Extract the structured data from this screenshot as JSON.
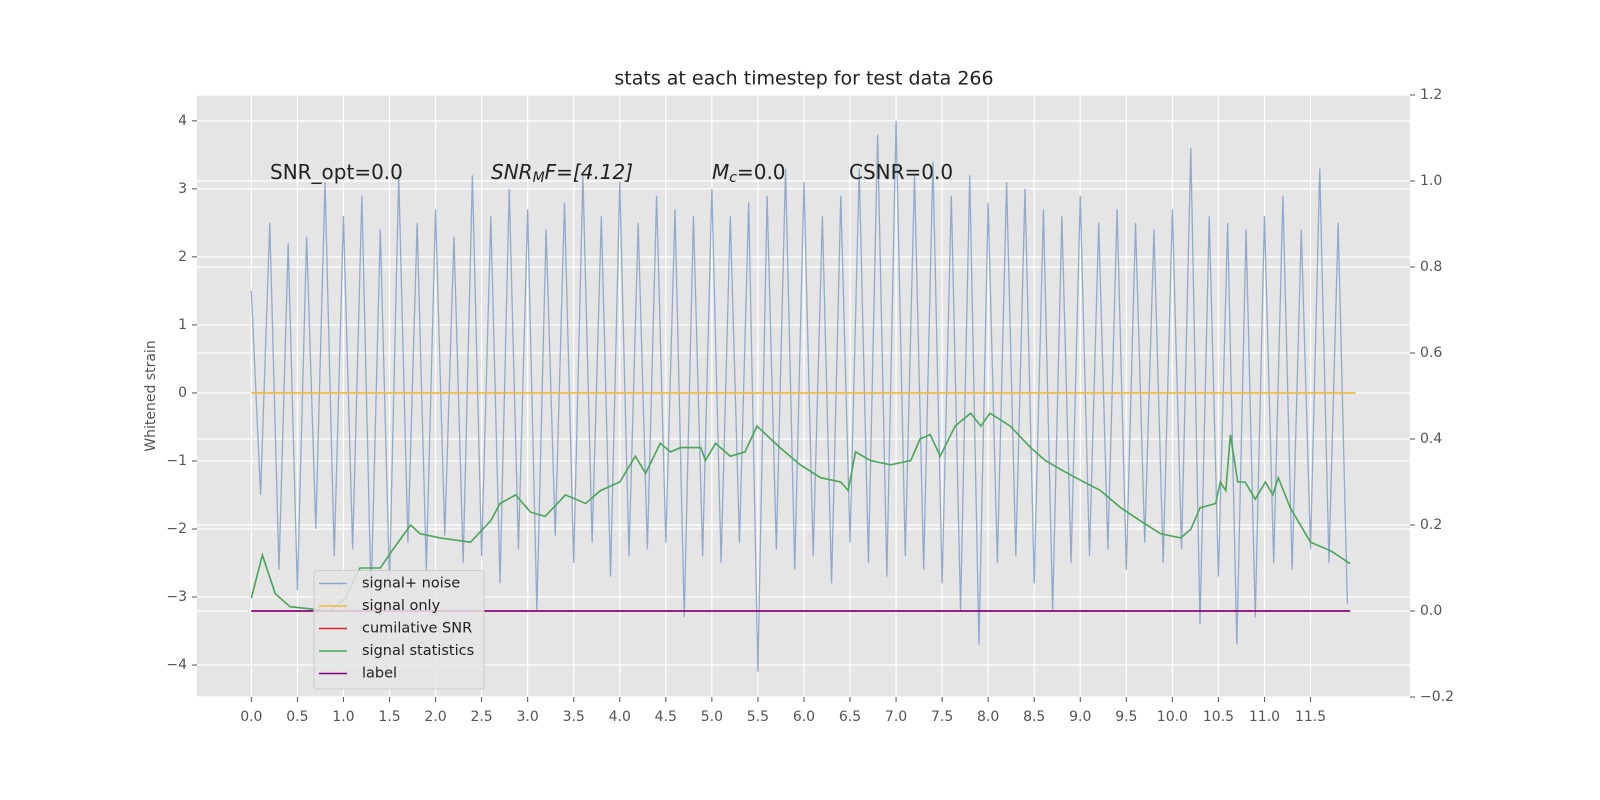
{
  "chart_data": {
    "type": "line",
    "title": "stats at each timestep for test data 266",
    "y_label": "Whitened strain",
    "annotations": [
      {
        "base": "SNR_opt=0.0"
      },
      {
        "base": "SNR",
        "sub": "M",
        "rest": "F=[4.12]"
      },
      {
        "base": "M",
        "sub": "c",
        "rest": "=0.0"
      },
      {
        "base": "CSNR=0.0"
      }
    ],
    "xlim": [
      -0.59,
      12.58
    ],
    "ylim": [
      -4.47,
      4.38
    ],
    "y2lim": [
      -0.2,
      1.2
    ],
    "xticks": [
      {
        "value": 0,
        "label": "0.0"
      },
      {
        "value": 0.5,
        "label": "0.5"
      },
      {
        "value": 1,
        "label": "1.0"
      },
      {
        "value": 1.5,
        "label": "1.5"
      },
      {
        "value": 2,
        "label": "2.0"
      },
      {
        "value": 2.5,
        "label": "2.5"
      },
      {
        "value": 3,
        "label": "3.0"
      },
      {
        "value": 3.5,
        "label": "3.5"
      },
      {
        "value": 4,
        "label": "4.0"
      },
      {
        "value": 4.5,
        "label": "4.5"
      },
      {
        "value": 5,
        "label": "5.0"
      },
      {
        "value": 5.5,
        "label": "5.5"
      },
      {
        "value": 6,
        "label": "6.0"
      },
      {
        "value": 6.5,
        "label": "6.5"
      },
      {
        "value": 7,
        "label": "7.0"
      },
      {
        "value": 7.5,
        "label": "7.5"
      },
      {
        "value": 8,
        "label": "8.0"
      },
      {
        "value": 8.5,
        "label": "8.5"
      },
      {
        "value": 9,
        "label": "9.0"
      },
      {
        "value": 9.5,
        "label": "9.5"
      },
      {
        "value": 10,
        "label": "10.0"
      },
      {
        "value": 10.5,
        "label": "10.5"
      },
      {
        "value": 11,
        "label": "11.0"
      },
      {
        "value": 11.5,
        "label": "11.5"
      }
    ],
    "yticks": [
      {
        "value": -4,
        "label": "−4"
      },
      {
        "value": -3,
        "label": "−3"
      },
      {
        "value": -2,
        "label": "−2"
      },
      {
        "value": -1,
        "label": "−1"
      },
      0,
      1,
      2,
      3,
      4
    ],
    "y2ticks": [
      {
        "value": -0.2,
        "label": "−0.2"
      },
      {
        "value": 0,
        "label": "0.0"
      },
      {
        "value": 0.2,
        "label": "0.2"
      },
      {
        "value": 0.4,
        "label": "0.4"
      },
      {
        "value": 0.6,
        "label": "0.6"
      },
      {
        "value": 0.8,
        "label": "0.8"
      },
      {
        "value": 1,
        "label": "1.0"
      },
      {
        "value": 1.2,
        "label": "1.2"
      }
    ],
    "grid": true,
    "legend": "lower left",
    "series": [
      {
        "name": "signal+ noise",
        "color": "#8ea5ca",
        "x": [
          0,
          0.1,
          0.2,
          0.3,
          0.4,
          0.5,
          0.6,
          0.7,
          0.8,
          0.9,
          1,
          1.1,
          1.2,
          1.3,
          1.4,
          1.5,
          1.6,
          1.7,
          1.8,
          1.9,
          2,
          2.1,
          2.2,
          2.3,
          2.4,
          2.5,
          2.6,
          2.7,
          2.8,
          2.9,
          3,
          3.1,
          3.2,
          3.3,
          3.4,
          3.5,
          3.6,
          3.7,
          3.8,
          3.9,
          4,
          4.1,
          4.2,
          4.3,
          4.4,
          4.5,
          4.6,
          4.7,
          4.8,
          4.9,
          5,
          5.1,
          5.2,
          5.3,
          5.4,
          5.5,
          5.6,
          5.7,
          5.8,
          5.9,
          6,
          6.1,
          6.2,
          6.3,
          6.4,
          6.5,
          6.6,
          6.7,
          6.8,
          6.9,
          7,
          7.1,
          7.2,
          7.3,
          7.4,
          7.5,
          7.6,
          7.7,
          7.8,
          7.9,
          8,
          8.1,
          8.2,
          8.3,
          8.4,
          8.5,
          8.6,
          8.7,
          8.8,
          8.9,
          9,
          9.1,
          9.2,
          9.3,
          9.4,
          9.5,
          9.6,
          9.7,
          9.8,
          9.9,
          10,
          10.1,
          10.2,
          10.3,
          10.4,
          10.5,
          10.6,
          10.7,
          10.8,
          10.9,
          11,
          11.1,
          11.2,
          11.3,
          11.4,
          11.5,
          11.6,
          11.7,
          11.8,
          11.9
        ],
        "values": [
          1.5,
          -1.5,
          2.5,
          -2.6,
          2.2,
          -2.9,
          2.3,
          -2.0,
          3.1,
          -2.4,
          2.6,
          -2.3,
          2.9,
          -3.0,
          2.4,
          -2.8,
          3.2,
          -2.2,
          2.5,
          -2.6,
          2.7,
          -2.1,
          2.3,
          -2.5,
          3.2,
          -2.4,
          2.6,
          -2.8,
          3.0,
          -2.3,
          2.7,
          -3.2,
          2.4,
          -2.1,
          2.8,
          -2.5,
          3.2,
          -2.2,
          2.6,
          -2.7,
          3.1,
          -2.4,
          2.5,
          -2.3,
          2.9,
          -2.2,
          2.7,
          -3.3,
          2.6,
          -2.4,
          3.0,
          -2.5,
          2.6,
          -2.2,
          2.8,
          -4.1,
          2.9,
          -2.3,
          3.3,
          -2.6,
          3.1,
          -2.4,
          2.6,
          -2.8,
          2.9,
          -2.2,
          3.3,
          -2.5,
          3.8,
          -2.7,
          4.0,
          -2.4,
          3.2,
          -2.6,
          3.4,
          -2.8,
          2.9,
          -3.2,
          3.2,
          -3.7,
          2.8,
          -2.5,
          3.1,
          -2.4,
          3.0,
          -2.8,
          2.7,
          -3.2,
          2.6,
          -2.5,
          2.9,
          -2.4,
          2.5,
          -2.3,
          2.7,
          -2.6,
          2.5,
          -2.2,
          2.4,
          -2.5,
          2.7,
          -2.3,
          3.6,
          -3.4,
          2.6,
          -2.7,
          2.5,
          -3.7,
          2.4,
          -3.3,
          2.6,
          -2.5,
          2.9,
          -2.6,
          2.4,
          -2.3,
          3.3,
          -2.5,
          2.5,
          -3.1
        ]
      },
      {
        "name": "signal only",
        "color": "#f2b742",
        "x": [
          0,
          11.99
        ],
        "values": [
          0,
          0
        ]
      },
      {
        "name": "cumilative SNR",
        "color": "#d62728",
        "axis": "y2",
        "x": [
          0,
          11.93
        ],
        "values": [
          0,
          0
        ]
      },
      {
        "name": "signal statistics",
        "color": "#4aa55a",
        "axis": "y2",
        "x": [
          0,
          0.12,
          0.26,
          0.42,
          0.86,
          1.02,
          1.18,
          1.4,
          1.56,
          1.73,
          1.83,
          2.05,
          2.38,
          2.6,
          2.7,
          2.87,
          3.03,
          3.19,
          3.41,
          3.63,
          3.79,
          4,
          4.17,
          4.28,
          4.44,
          4.55,
          4.66,
          4.88,
          4.93,
          5.04,
          5.2,
          5.36,
          5.49,
          5.74,
          5.96,
          6.18,
          6.4,
          6.48,
          6.56,
          6.72,
          6.94,
          7.16,
          7.26,
          7.37,
          7.48,
          7.64,
          7.81,
          7.92,
          8.02,
          8.24,
          8.46,
          8.62,
          8.78,
          8.95,
          9.22,
          9.44,
          9.65,
          9.87,
          10.09,
          10.2,
          10.3,
          10.47,
          10.52,
          10.58,
          10.63,
          10.71,
          10.79,
          10.9,
          11.01,
          11.09,
          11.15,
          11.28,
          11.5,
          11.72,
          11.93
        ],
        "values": [
          0.03,
          0.13,
          0.04,
          0.01,
          0,
          0.03,
          0.1,
          0.1,
          0.15,
          0.2,
          0.18,
          0.17,
          0.16,
          0.21,
          0.25,
          0.27,
          0.23,
          0.22,
          0.27,
          0.25,
          0.28,
          0.3,
          0.36,
          0.32,
          0.39,
          0.37,
          0.38,
          0.38,
          0.35,
          0.39,
          0.36,
          0.37,
          0.43,
          0.38,
          0.34,
          0.31,
          0.3,
          0.28,
          0.37,
          0.35,
          0.34,
          0.35,
          0.4,
          0.41,
          0.36,
          0.43,
          0.46,
          0.43,
          0.46,
          0.43,
          0.38,
          0.35,
          0.33,
          0.31,
          0.28,
          0.24,
          0.21,
          0.18,
          0.17,
          0.19,
          0.24,
          0.25,
          0.3,
          0.28,
          0.41,
          0.3,
          0.3,
          0.26,
          0.3,
          0.27,
          0.31,
          0.24,
          0.16,
          0.14,
          0.11
        ]
      },
      {
        "name": "label",
        "color": "#800080",
        "axis": "y2",
        "x": [
          0,
          11.93
        ],
        "values": [
          0,
          0
        ]
      }
    ]
  }
}
